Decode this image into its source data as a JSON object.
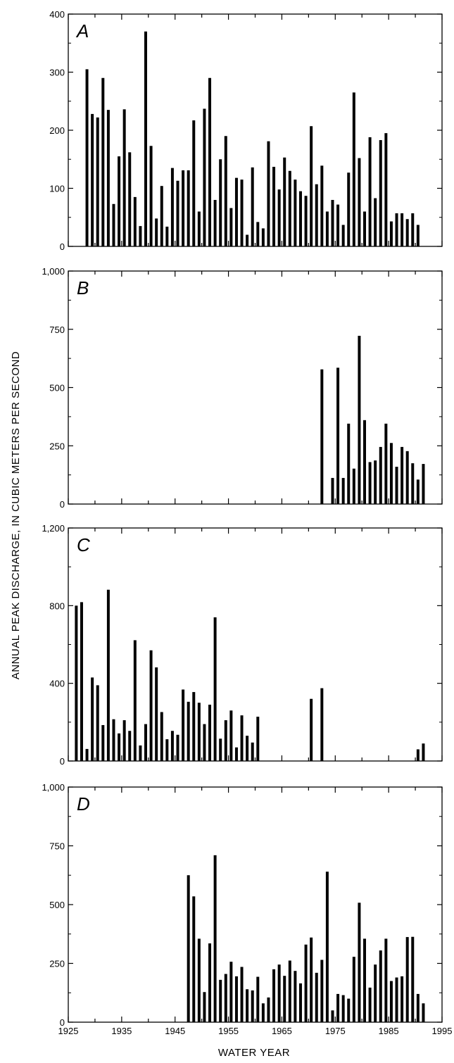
{
  "ylabel": "ANNUAL PEAK DISCHARGE, IN CUBIC METERS PER SECOND",
  "xlabel": "WATER YEAR",
  "x_ticks": [
    "1925",
    "1935",
    "1945",
    "1955",
    "1965",
    "1975",
    "1985",
    "1995"
  ],
  "chart_data": [
    {
      "type": "bar",
      "panel": "A",
      "xlim": [
        1925,
        1995
      ],
      "ylim": [
        0,
        400
      ],
      "y_ticks": [
        "0",
        "100",
        "200",
        "300",
        "400"
      ],
      "x": [
        1928,
        1929,
        1930,
        1931,
        1932,
        1933,
        1934,
        1935,
        1936,
        1937,
        1938,
        1939,
        1940,
        1941,
        1942,
        1943,
        1944,
        1945,
        1946,
        1947,
        1948,
        1949,
        1950,
        1951,
        1952,
        1953,
        1954,
        1955,
        1956,
        1957,
        1958,
        1959,
        1960,
        1961,
        1962,
        1963,
        1964,
        1965,
        1966,
        1967,
        1968,
        1969,
        1970,
        1971,
        1972,
        1973,
        1974,
        1975,
        1976,
        1977,
        1978,
        1979,
        1980,
        1981,
        1982,
        1983,
        1984,
        1985,
        1986,
        1987,
        1988,
        1989,
        1990,
        1991
      ],
      "values": [
        305,
        228,
        222,
        290,
        235,
        73,
        155,
        236,
        162,
        85,
        35,
        370,
        173,
        48,
        104,
        34,
        135,
        113,
        131,
        131,
        217,
        60,
        237,
        290,
        80,
        150,
        190,
        66,
        118,
        115,
        20,
        136,
        42,
        31,
        181,
        137,
        98,
        153,
        130,
        115,
        95,
        87,
        207,
        107,
        139,
        60,
        80,
        72,
        37,
        127,
        265,
        152,
        60,
        188,
        83,
        183,
        195,
        43,
        57,
        57,
        47,
        57,
        37,
        0
      ]
    },
    {
      "type": "bar",
      "panel": "B",
      "xlim": [
        1925,
        1995
      ],
      "ylim": [
        0,
        1000
      ],
      "y_ticks": [
        "0",
        "250",
        "500",
        "750",
        "1,000"
      ],
      "x": [
        1972,
        1974,
        1975,
        1976,
        1977,
        1978,
        1979,
        1980,
        1981,
        1982,
        1983,
        1984,
        1985,
        1986,
        1987,
        1988,
        1989,
        1990,
        1991
      ],
      "values": [
        578,
        112,
        585,
        112,
        345,
        152,
        722,
        360,
        180,
        187,
        245,
        345,
        262,
        160,
        245,
        227,
        175,
        105,
        172
      ]
    },
    {
      "type": "bar",
      "panel": "C",
      "xlim": [
        1925,
        1995
      ],
      "ylim": [
        0,
        1200
      ],
      "y_ticks": [
        "0",
        "400",
        "800",
        "1,200"
      ],
      "x": [
        1926,
        1927,
        1928,
        1929,
        1930,
        1931,
        1932,
        1933,
        1934,
        1935,
        1936,
        1937,
        1938,
        1939,
        1940,
        1941,
        1942,
        1943,
        1944,
        1945,
        1946,
        1947,
        1948,
        1949,
        1950,
        1951,
        1952,
        1953,
        1954,
        1955,
        1956,
        1957,
        1958,
        1959,
        1960,
        1970,
        1972,
        1990,
        1991
      ],
      "values": [
        800,
        818,
        62,
        430,
        390,
        185,
        882,
        215,
        142,
        210,
        155,
        622,
        80,
        190,
        570,
        482,
        252,
        112,
        155,
        135,
        368,
        305,
        355,
        300,
        190,
        290,
        740,
        115,
        210,
        260,
        70,
        235,
        130,
        95,
        228,
        320,
        375,
        60,
        90
      ]
    },
    {
      "type": "bar",
      "panel": "D",
      "xlim": [
        1925,
        1995
      ],
      "ylim": [
        0,
        1000
      ],
      "y_ticks": [
        "0",
        "250",
        "500",
        "750",
        "1,000"
      ],
      "x": [
        1947,
        1948,
        1949,
        1950,
        1951,
        1952,
        1953,
        1954,
        1955,
        1956,
        1957,
        1958,
        1959,
        1960,
        1961,
        1962,
        1963,
        1964,
        1965,
        1966,
        1967,
        1968,
        1969,
        1970,
        1971,
        1972,
        1973,
        1974,
        1975,
        1976,
        1977,
        1978,
        1979,
        1980,
        1981,
        1982,
        1983,
        1984,
        1985,
        1986,
        1987,
        1988,
        1989,
        1990,
        1991
      ],
      "values": [
        625,
        535,
        355,
        128,
        335,
        710,
        180,
        205,
        257,
        195,
        235,
        140,
        135,
        193,
        80,
        105,
        225,
        245,
        197,
        262,
        218,
        165,
        330,
        360,
        210,
        265,
        640,
        50,
        120,
        115,
        100,
        278,
        508,
        355,
        147,
        245,
        305,
        355,
        175,
        190,
        195,
        362,
        363,
        120,
        80
      ]
    }
  ]
}
